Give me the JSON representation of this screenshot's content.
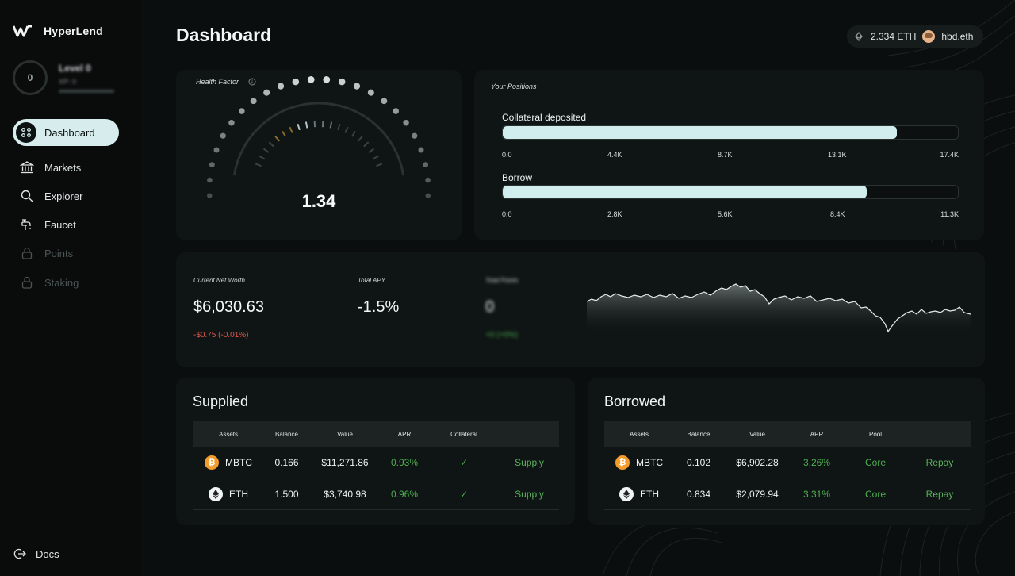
{
  "brand": {
    "name": "HyperLend"
  },
  "user_level": {
    "title": "Level 0",
    "xp": "XP: 0",
    "badge": "0"
  },
  "nav": {
    "active": {
      "label": "Dashboard",
      "icon": "dashboard-icon"
    },
    "items": [
      {
        "label": "Markets",
        "icon": "bank-icon",
        "disabled": false
      },
      {
        "label": "Explorer",
        "icon": "search-icon",
        "disabled": false
      },
      {
        "label": "Faucet",
        "icon": "faucet-icon",
        "disabled": false
      },
      {
        "label": "Points",
        "icon": "lock-icon",
        "disabled": true
      },
      {
        "label": "Staking",
        "icon": "lock-icon",
        "disabled": true
      }
    ],
    "docs": "Docs"
  },
  "header": {
    "title": "Dashboard",
    "balance": "2.334 ETH",
    "ens": "hbd.eth"
  },
  "health": {
    "label": "Health Factor",
    "value": "1.34"
  },
  "positions": {
    "label": "Your Positions",
    "collateral": {
      "title": "Collateral deposited",
      "fill_fraction": 0.866,
      "ticks": [
        "0.0",
        "4.4K",
        "8.7K",
        "13.1K",
        "17.4K"
      ]
    },
    "borrow": {
      "title": "Borrow",
      "fill_fraction": 0.8,
      "ticks": [
        "0.0",
        "2.8K",
        "5.6K",
        "8.4K",
        "11.3K"
      ]
    }
  },
  "summary": {
    "net_worth": {
      "label": "Current Net Worth",
      "value": "$6,030.63",
      "change": "-$0.75 (-0.01%)"
    },
    "apy": {
      "label": "Total APY",
      "value": "-1.5%"
    },
    "points": {
      "label": "Total Points",
      "value": "0",
      "change": "+0 (+0%)"
    }
  },
  "supplied": {
    "title": "Supplied",
    "columns": [
      "Assets",
      "Balance",
      "Value",
      "APR",
      "Collateral",
      ""
    ],
    "rows": [
      {
        "asset": "MBTC",
        "coin": "btc",
        "balance": "0.166",
        "value": "$11,271.86",
        "apr": "0.93%",
        "collateral": "✓",
        "action": "Supply"
      },
      {
        "asset": "ETH",
        "coin": "eth",
        "balance": "1.500",
        "value": "$3,740.98",
        "apr": "0.96%",
        "collateral": "✓",
        "action": "Supply"
      }
    ]
  },
  "borrowed": {
    "title": "Borrowed",
    "columns": [
      "Assets",
      "Balance",
      "Value",
      "APR",
      "Pool",
      ""
    ],
    "rows": [
      {
        "asset": "MBTC",
        "coin": "btc",
        "balance": "0.102",
        "value": "$6,902.28",
        "apr": "3.26%",
        "pool": "Core",
        "action": "Repay"
      },
      {
        "asset": "ETH",
        "coin": "eth",
        "balance": "0.834",
        "value": "$2,079.94",
        "apr": "3.31%",
        "pool": "Core",
        "action": "Repay"
      }
    ]
  },
  "colors": {
    "accent": "#d2eded",
    "positive": "#4caf50",
    "negative": "#e2574c"
  }
}
